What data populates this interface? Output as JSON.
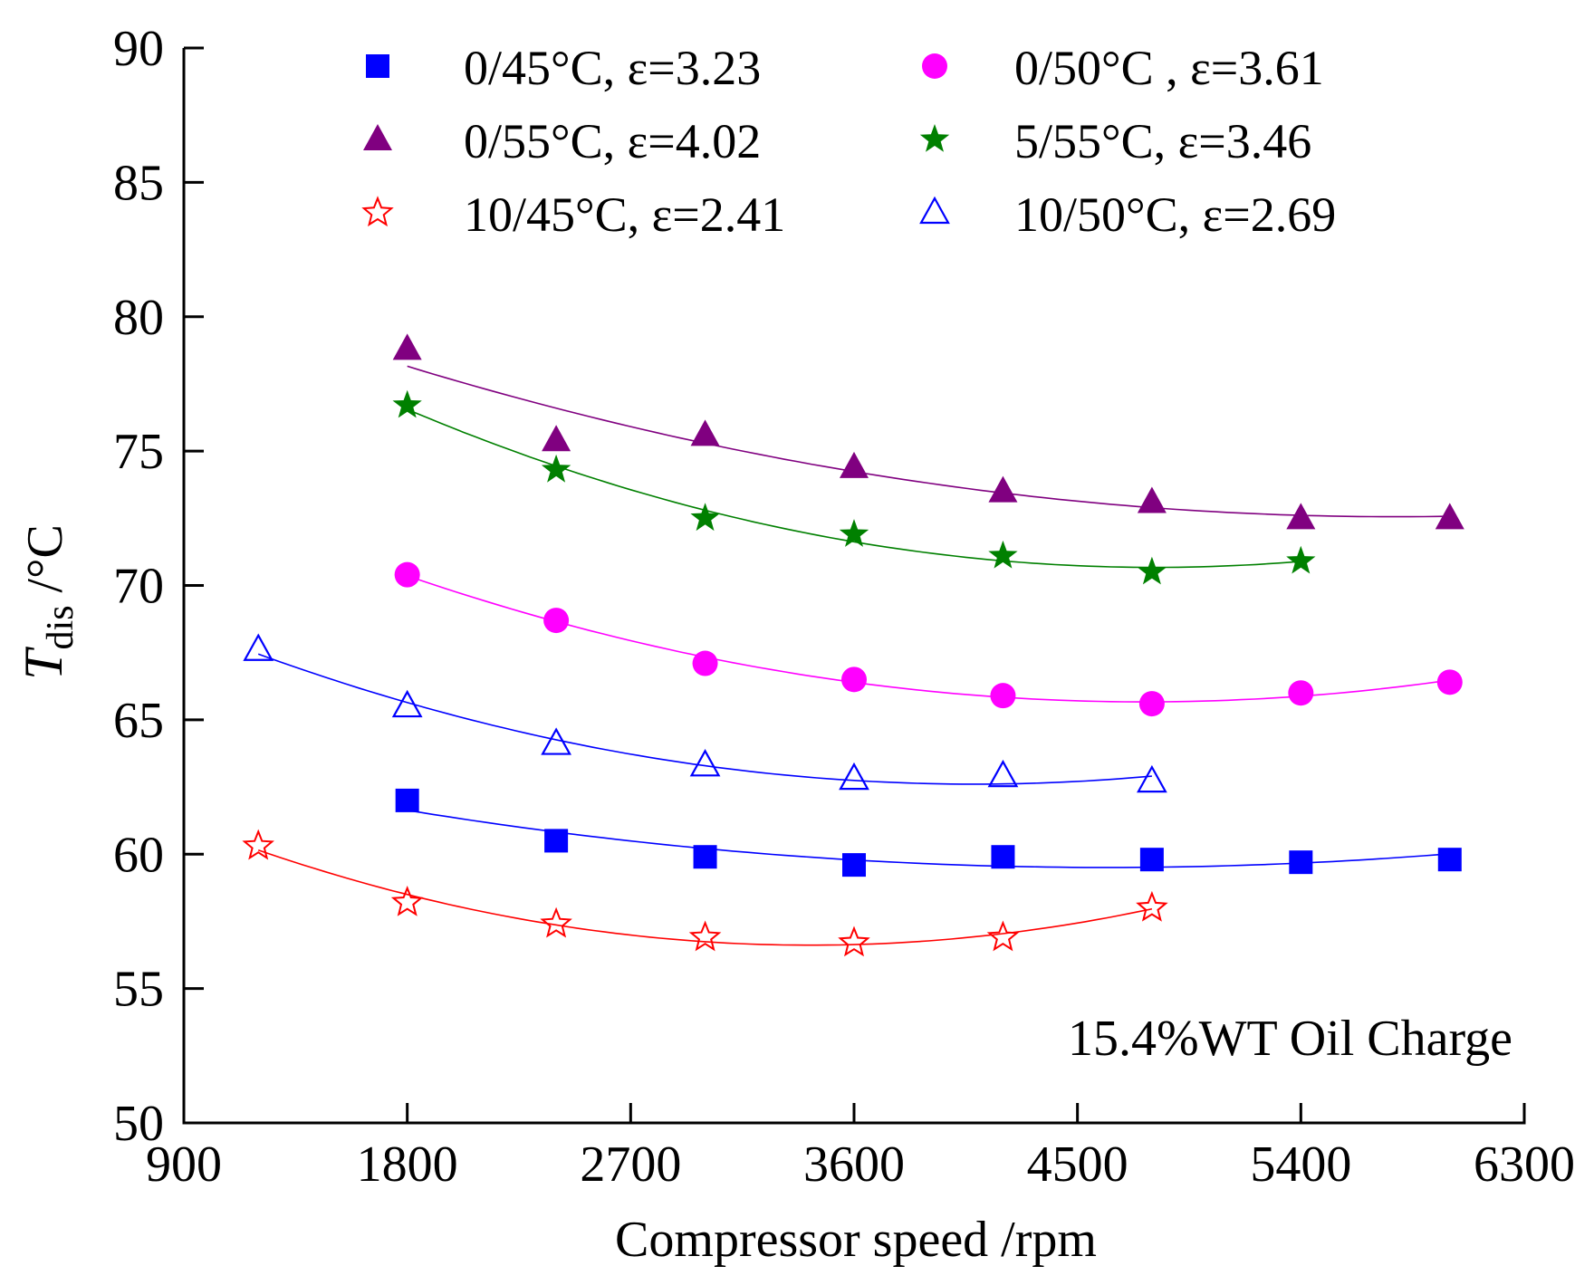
{
  "chart_data": {
    "type": "scatter",
    "title": "",
    "xlabel": "Compressor speed /rpm",
    "ylabel": {
      "symbol": "T",
      "subscript": "dis",
      "unit": " /°C"
    },
    "xlim": [
      900,
      6300
    ],
    "ylim": [
      50,
      90
    ],
    "xticks": [
      900,
      1800,
      2700,
      3600,
      4500,
      5400,
      6300
    ],
    "yticks": [
      50,
      55,
      60,
      65,
      70,
      75,
      80,
      85,
      90
    ],
    "grid": false,
    "legend_position": "top",
    "annotation": "15.4%WT Oil Charge",
    "series": [
      {
        "name": "0/45°C, ε=3.23",
        "marker": "square-filled",
        "color": "#0000ff",
        "x": [
          1800,
          2400,
          3000,
          3600,
          4200,
          4800,
          5400,
          6000
        ],
        "y": [
          62.0,
          60.5,
          59.9,
          59.6,
          59.9,
          59.8,
          59.7,
          59.8
        ]
      },
      {
        "name": "0/50°C , ε=3.61",
        "marker": "circle-filled",
        "color": "#ff00ff",
        "x": [
          1800,
          2400,
          3000,
          3600,
          4200,
          4800,
          5400,
          6000
        ],
        "y": [
          70.4,
          68.7,
          67.1,
          66.5,
          65.9,
          65.6,
          66.0,
          66.4
        ]
      },
      {
        "name": "0/55°C, ε=4.02",
        "marker": "triangle-filled",
        "color": "#800080",
        "x": [
          1800,
          2400,
          3000,
          3600,
          4200,
          4800,
          5400,
          6000
        ],
        "y": [
          78.8,
          75.4,
          75.6,
          74.4,
          73.5,
          73.1,
          72.5,
          72.5
        ]
      },
      {
        "name": "5/55°C, ε=3.46",
        "marker": "star-filled",
        "color": "#008000",
        "x": [
          1800,
          2400,
          3000,
          3600,
          4200,
          4800,
          5400
        ],
        "y": [
          76.7,
          74.3,
          72.5,
          71.9,
          71.1,
          70.5,
          70.9
        ]
      },
      {
        "name": "10/45°C, ε=2.41",
        "marker": "star-open",
        "color": "#ff0000",
        "x": [
          1200,
          1800,
          2400,
          3000,
          3600,
          4200,
          4800
        ],
        "y": [
          60.3,
          58.2,
          57.4,
          56.9,
          56.7,
          56.9,
          58.0
        ]
      },
      {
        "name": "10/50°C, ε=2.69",
        "marker": "triangle-open",
        "color": "#0000ff",
        "x": [
          1200,
          1800,
          2400,
          3000,
          3600,
          4200,
          4800
        ],
        "y": [
          67.6,
          65.5,
          64.1,
          63.3,
          62.8,
          62.9,
          62.7
        ]
      }
    ]
  }
}
